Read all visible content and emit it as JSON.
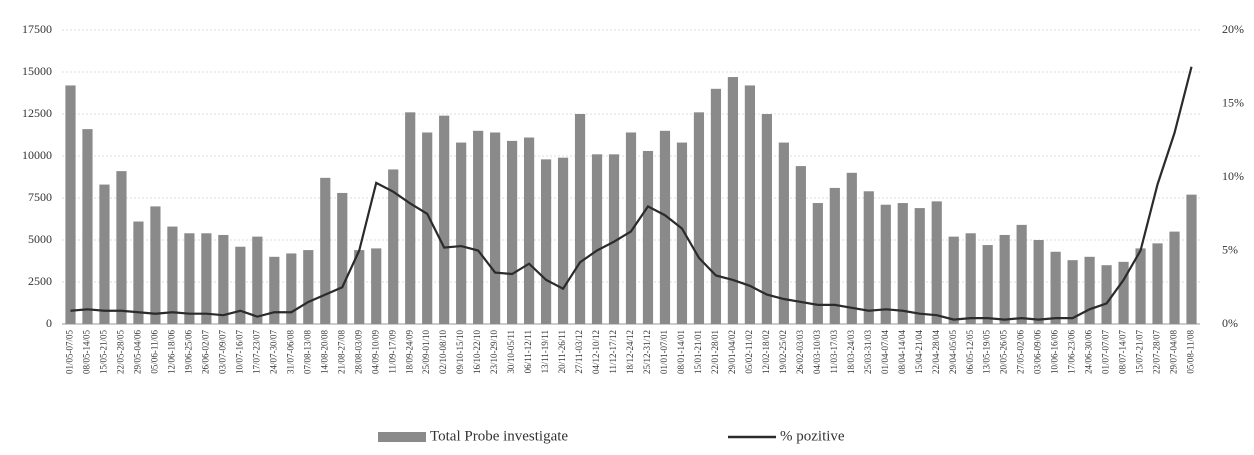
{
  "chart_data": {
    "type": "bar_line",
    "categories": [
      "01/05-07/05",
      "08/05-14/05",
      "15/05-21/05",
      "22/05-28/05",
      "29/05-04/06",
      "05/06-11/06",
      "12/06-18/06",
      "19/06-25/06",
      "26/06-02/07",
      "03/07-09/07",
      "10/07-16/07",
      "17/07-23/07",
      "24/07-30/07",
      "31/07-06/08",
      "07/08-13/08",
      "14/08-20/08",
      "21/08-27/08",
      "28/08-03/09",
      "04/09-10/09",
      "11/09-17/09",
      "18/09-24/09",
      "25/09-01/10",
      "02/10-08/10",
      "09/10-15/10",
      "16/10-22/10",
      "23/10-29/10",
      "30/10-05/11",
      "06/11-12/11",
      "13/11-19/11",
      "20/11-26/11",
      "27/11-03/12",
      "04/12-10/12",
      "11/12-17/12",
      "18/12-24/12",
      "25/12-31/12",
      "01/01-07/01",
      "08/01-14/01",
      "15/01-21/01",
      "22/01-28/01",
      "29/01-04/02",
      "05/02-11/02",
      "12/02-18/02",
      "19/02-25/02",
      "26/02-03/03",
      "04/03-10/03",
      "11/03-17/03",
      "18/03-24/03",
      "25/03-31/03",
      "01/04-07/04",
      "08/04-14/04",
      "15/04-21/04",
      "22/04-28/04",
      "29/04-05/05",
      "06/05-12/05",
      "13/05-19/05",
      "20/05-26/05",
      "27/05-02/06",
      "03/06-09/06",
      "10/06-16/06",
      "17/06-23/06",
      "24/06-30/06",
      "01/07-07/07",
      "08/07-14/07",
      "15/07-21/07",
      "22/07-28/07",
      "29/07-04/08",
      "05/08-11/08"
    ],
    "series": [
      {
        "name": "Total Probe investigate",
        "type": "bar",
        "color": "#8a8a8a",
        "axis": "y",
        "values": [
          14200,
          11600,
          8300,
          9100,
          6100,
          7000,
          5800,
          5400,
          5400,
          5300,
          4600,
          5200,
          4000,
          4200,
          4400,
          8700,
          7800,
          4400,
          4500,
          9200,
          12600,
          11400,
          12400,
          10800,
          11500,
          11400,
          10900,
          11100,
          9800,
          9900,
          12500,
          10100,
          10100,
          11400,
          10300,
          11500,
          10800,
          12600,
          14000,
          14700,
          14200,
          12500,
          10800,
          9400,
          7200,
          8100,
          9000,
          7900,
          7100,
          7200,
          6900,
          7300,
          5200,
          5400,
          4700,
          5300,
          5900,
          5000,
          4300,
          3800,
          4000,
          3500,
          3700,
          4500,
          4800,
          5500,
          7700
        ]
      },
      {
        "name": "% pozitive",
        "type": "line",
        "color": "#2b2b2b",
        "axis": "y2",
        "values": [
          0.9,
          1.0,
          0.9,
          0.9,
          0.8,
          0.7,
          0.8,
          0.7,
          0.7,
          0.6,
          0.9,
          0.5,
          0.8,
          0.8,
          1.5,
          2.0,
          2.5,
          5.0,
          9.6,
          9.0,
          8.2,
          7.5,
          5.2,
          5.3,
          5.0,
          3.5,
          3.4,
          4.1,
          3.0,
          2.4,
          4.2,
          5.0,
          5.6,
          6.3,
          8.0,
          7.4,
          6.5,
          4.5,
          3.3,
          3.0,
          2.6,
          2.0,
          1.7,
          1.5,
          1.3,
          1.3,
          1.1,
          0.9,
          1.0,
          0.9,
          0.7,
          0.6,
          0.3,
          0.4,
          0.4,
          0.3,
          0.4,
          0.3,
          0.4,
          0.4,
          1.0,
          1.4,
          3.0,
          5.0,
          9.5,
          13.0,
          17.5
        ]
      }
    ],
    "ylim": [
      0,
      17500
    ],
    "yticks": [
      0,
      2500,
      5000,
      7500,
      10000,
      12500,
      15000,
      17500
    ],
    "y2lim": [
      0,
      20
    ],
    "y2ticks": [
      {
        "value": 0,
        "label": "0%"
      },
      {
        "value": 5,
        "label": "5%"
      },
      {
        "value": 10,
        "label": "10%"
      },
      {
        "value": 15,
        "label": "15%"
      },
      {
        "value": 20,
        "label": "20%"
      }
    ],
    "grid": true,
    "legend": "bottom"
  }
}
